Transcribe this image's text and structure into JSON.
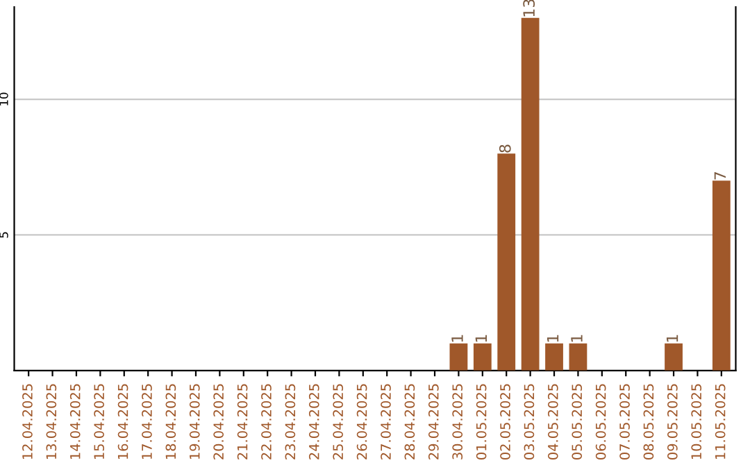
{
  "chart_data": {
    "type": "bar",
    "categories": [
      "12.04.2025",
      "13.04.2025",
      "14.04.2025",
      "15.04.2025",
      "16.04.2025",
      "17.04.2025",
      "18.04.2025",
      "19.04.2025",
      "20.04.2025",
      "21.04.2025",
      "22.04.2025",
      "23.04.2025",
      "24.04.2025",
      "25.04.2025",
      "26.04.2025",
      "27.04.2025",
      "28.04.2025",
      "29.04.2025",
      "30.04.2025",
      "01.05.2025",
      "02.05.2025",
      "03.05.2025",
      "04.05.2025",
      "05.05.2025",
      "06.05.2025",
      "07.05.2025",
      "08.05.2025",
      "09.05.2025",
      "10.05.2025",
      "11.05.2025"
    ],
    "values": [
      0,
      0,
      0,
      0,
      0,
      0,
      0,
      0,
      0,
      0,
      0,
      0,
      0,
      0,
      0,
      0,
      0,
      0,
      1,
      1,
      8,
      13,
      1,
      1,
      0,
      0,
      0,
      1,
      0,
      7
    ],
    "value_labels": [
      null,
      null,
      null,
      null,
      null,
      null,
      null,
      null,
      null,
      null,
      null,
      null,
      null,
      null,
      null,
      null,
      null,
      null,
      "1",
      "1",
      "8",
      "13",
      "1",
      "1",
      null,
      null,
      null,
      "1",
      null,
      "7"
    ],
    "color": "#a0582a",
    "ylim": [
      0,
      13.4
    ],
    "yticks": [
      5,
      10
    ],
    "grid": "y"
  }
}
